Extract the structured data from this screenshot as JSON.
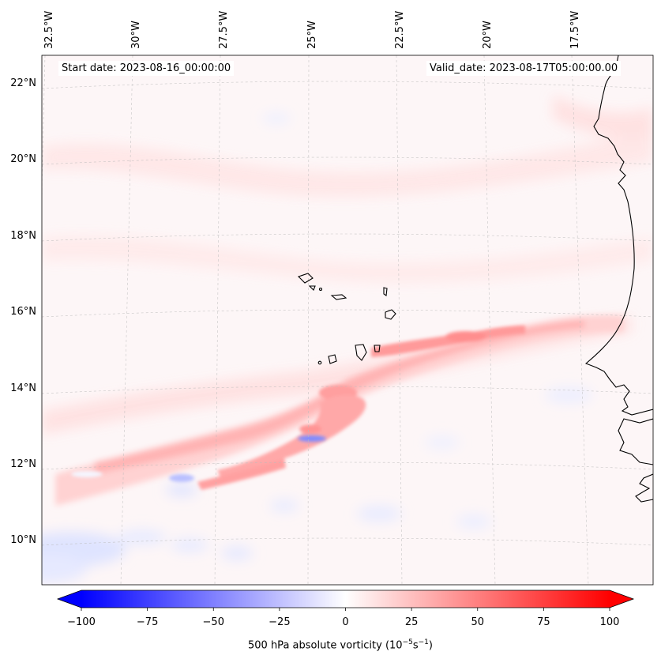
{
  "map": {
    "start_date_label": "Start date: 2023-08-16_00:00:00",
    "valid_date_label": "Valid_date: 2023-08-17T05:00:00.00",
    "longitude_labels": [
      "32.5°W",
      "30°W",
      "27.5°W",
      "25°W",
      "22.5°W",
      "20°W",
      "17.5°W"
    ],
    "latitude_labels": [
      "22°N",
      "20°N",
      "18°N",
      "16°N",
      "14°N",
      "12°N",
      "10°N"
    ],
    "colorbar": {
      "ticks": [
        "−100",
        "−75",
        "−50",
        "−25",
        "0",
        "25",
        "50",
        "75",
        "100"
      ],
      "label_text": "500 hPa absolute vorticity (10",
      "label_exp1": "−5",
      "label_mid": "s",
      "label_exp2": "−1",
      "label_close": ")",
      "min": -100,
      "max": 100,
      "colormap": "bwr",
      "extend": "both"
    },
    "colors": {
      "negative": "#0000ff",
      "neutral": "#ffffff",
      "positive": "#ff0000",
      "coastline": "#000000"
    }
  }
}
